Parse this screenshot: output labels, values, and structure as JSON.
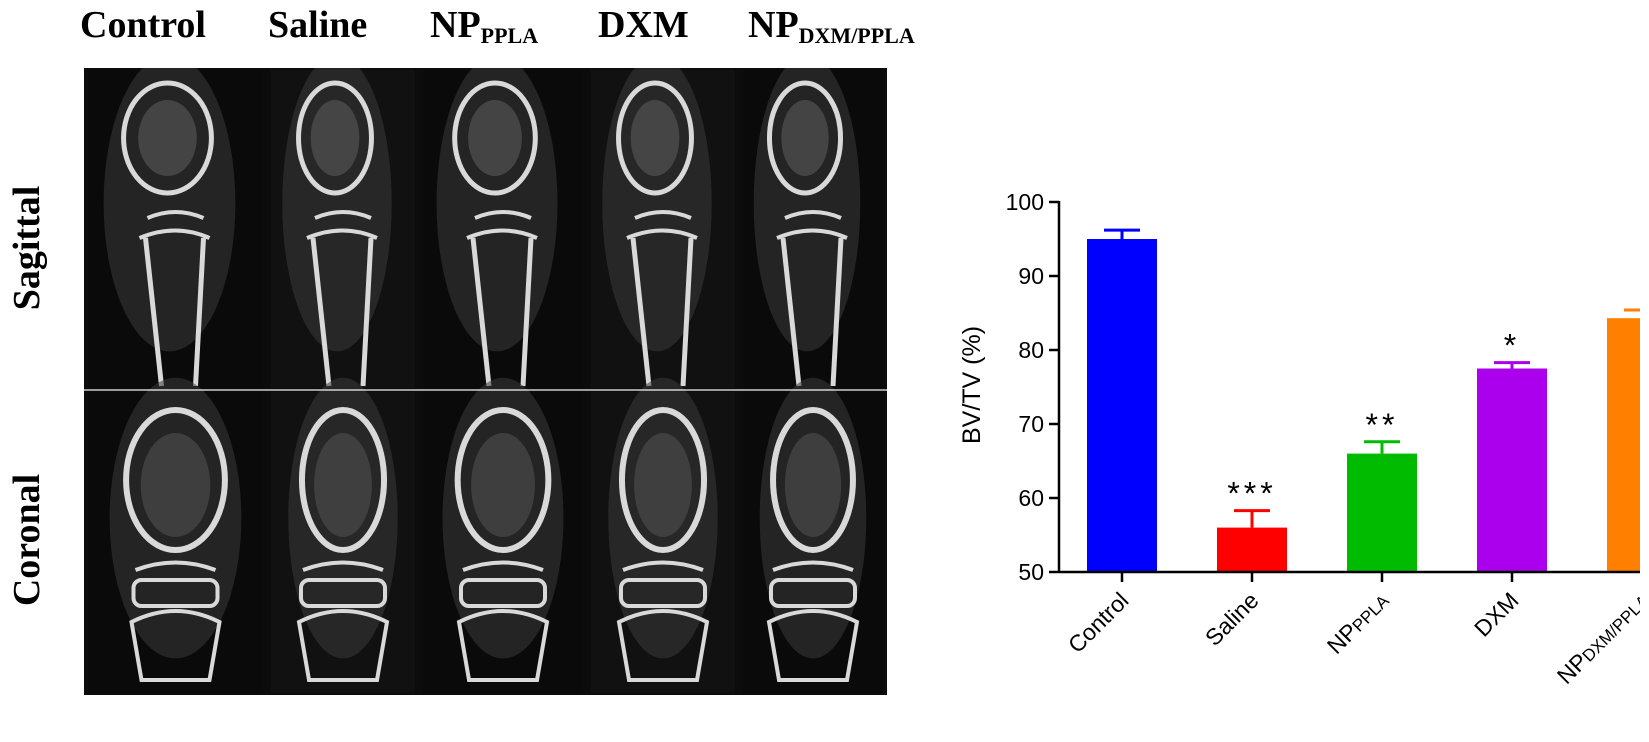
{
  "figure": {
    "column_headers": [
      {
        "main": "Control",
        "sub": ""
      },
      {
        "main": "Saline",
        "sub": ""
      },
      {
        "main": "NP",
        "sub": "PPLA"
      },
      {
        "main": "DXM",
        "sub": ""
      },
      {
        "main": "NP",
        "sub": "DXM/PPLA"
      }
    ],
    "row_labels": [
      "Sagittal",
      "Coronal"
    ],
    "colors": {
      "panel_bg": "#0c0c0c",
      "bone": "#d9d9d9",
      "soft": "#3a3a3a"
    }
  },
  "chart_data": {
    "type": "bar",
    "categories": [
      "Control",
      "Saline",
      "NPPPLA",
      "DXM",
      "NPDXM/PPLA"
    ],
    "tick_labels": [
      {
        "main": "Control",
        "sub": ""
      },
      {
        "main": "Saline",
        "sub": ""
      },
      {
        "main": "NP",
        "sub": "PPLA"
      },
      {
        "main": "DXM",
        "sub": ""
      },
      {
        "main": "NP",
        "sub": "DXM/PPLA"
      }
    ],
    "values": [
      95,
      56,
      66,
      77.5,
      84.3
    ],
    "errors": [
      1.2,
      2.3,
      1.6,
      0.8,
      1.1
    ],
    "significance": [
      "",
      "***",
      "**",
      "*",
      ""
    ],
    "colors": [
      "#0000ff",
      "#ff0000",
      "#00bb00",
      "#aa00ee",
      "#ff7f00"
    ],
    "ylabel": "BV/TV (%)",
    "xlabel": "",
    "ylim": [
      50,
      100
    ],
    "yticks": [
      50,
      60,
      70,
      80,
      90,
      100
    ],
    "grid": false,
    "legend": "none"
  }
}
